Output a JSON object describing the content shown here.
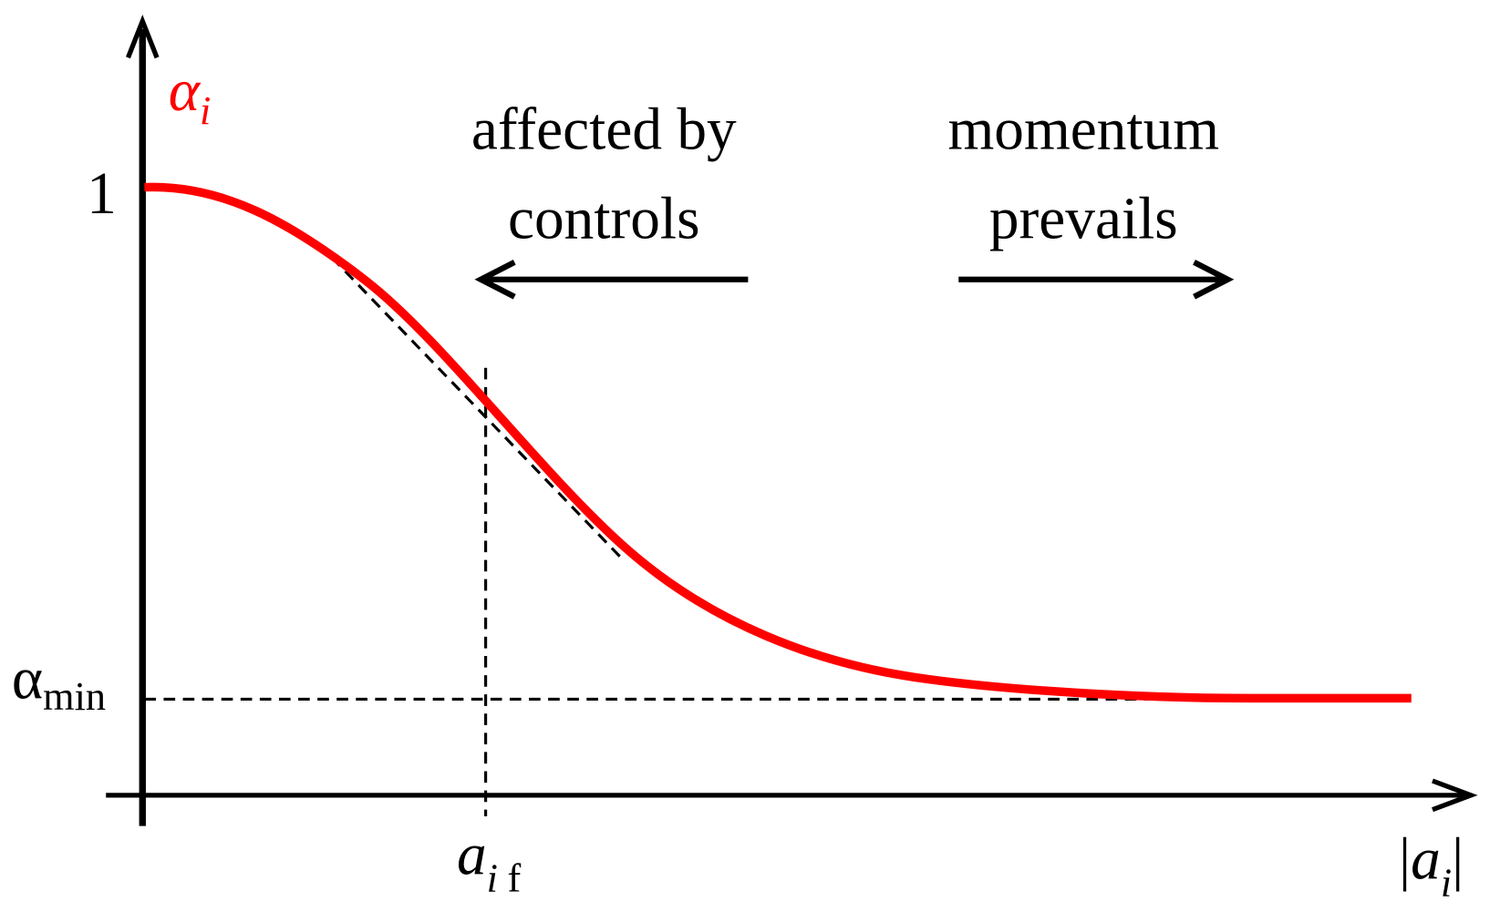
{
  "axes": {
    "y_label": {
      "main": "α",
      "sub": "i"
    },
    "x_label": {
      "open": "|",
      "main": "a",
      "sub": "i",
      "close": "|"
    }
  },
  "y_marks": {
    "one": "1",
    "alpha_min": {
      "main": "α",
      "sub": "min"
    }
  },
  "x_marks": {
    "a_f": {
      "main": "a",
      "sub": "i",
      "suffix": "f"
    }
  },
  "annotations": {
    "left": [
      "affected by",
      "controls"
    ],
    "right": [
      "momentum",
      "prevails"
    ]
  }
}
